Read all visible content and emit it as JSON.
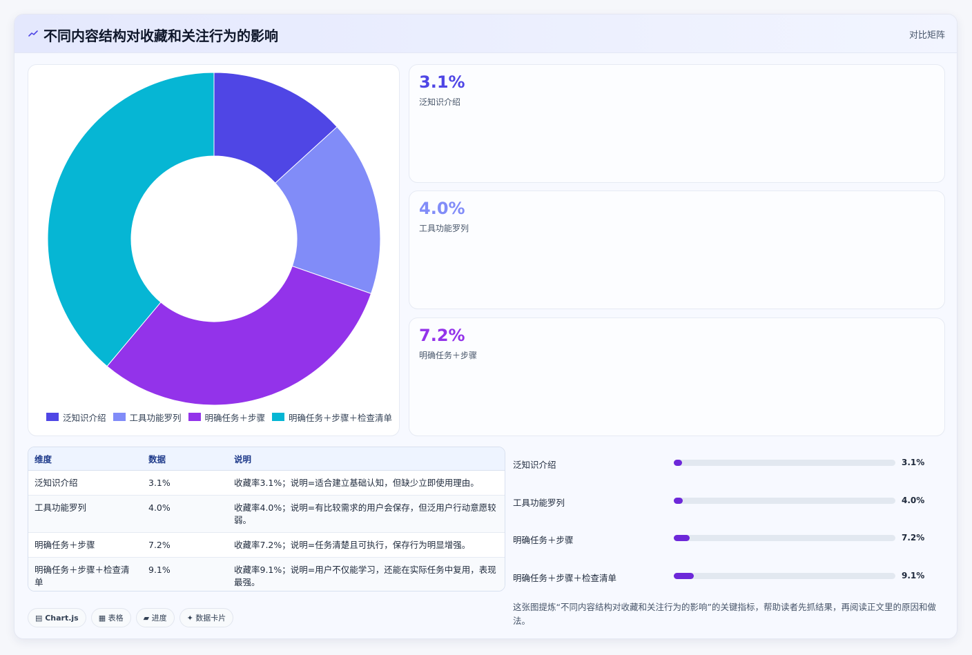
{
  "header": {
    "title": "不同内容结构对收藏和关注行为的影响",
    "tag": "对比矩阵"
  },
  "chart_data": {
    "type": "pie",
    "variant": "doughnut",
    "categories": [
      "泛知识介绍",
      "工具功能罗列",
      "明确任务＋步骤",
      "明确任务＋步骤＋检查清单"
    ],
    "values": [
      3.1,
      4.0,
      7.2,
      9.1
    ],
    "unit": "%",
    "colors": [
      "#4f46e5",
      "#818cf8",
      "#9333ea",
      "#06b6d4"
    ],
    "legend_position": "bottom"
  },
  "legend": [
    {
      "label": "泛知识介绍",
      "color": "#4f46e5"
    },
    {
      "label": "工具功能罗列",
      "color": "#818cf8"
    },
    {
      "label": "明确任务＋步骤",
      "color": "#9333ea"
    },
    {
      "label": "明确任务＋步骤＋检查清单",
      "color": "#06b6d4"
    }
  ],
  "stats": [
    {
      "value": "3.1%",
      "label": "泛知识介绍",
      "color": "#4f46e5"
    },
    {
      "value": "4.0%",
      "label": "工具功能罗列",
      "color": "#818cf8"
    },
    {
      "value": "7.2%",
      "label": "明确任务＋步骤",
      "color": "#9333ea"
    }
  ],
  "table": {
    "headers": [
      "维度",
      "数据",
      "说明"
    ],
    "rows": [
      [
        "泛知识介绍",
        "3.1%",
        "收藏率3.1%；说明=适合建立基础认知，但缺少立即使用理由。"
      ],
      [
        "工具功能罗列",
        "4.0%",
        "收藏率4.0%；说明=有比较需求的用户会保存，但泛用户行动意愿较弱。"
      ],
      [
        "明确任务＋步骤",
        "7.2%",
        "收藏率7.2%；说明=任务清楚且可执行，保存行为明显增强。"
      ],
      [
        "明确任务＋步骤＋检查清单",
        "9.1%",
        "收藏率9.1%；说明=用户不仅能学习，还能在实际任务中复用，表现最强。"
      ]
    ]
  },
  "bars": [
    {
      "label": "泛知识介绍",
      "value": "3.1%",
      "fraction": 0.031
    },
    {
      "label": "工具功能罗列",
      "value": "4.0%",
      "fraction": 0.04
    },
    {
      "label": "明确任务＋步骤",
      "value": "7.2%",
      "fraction": 0.072
    },
    {
      "label": "明确任务＋步骤＋检查清单",
      "value": "9.1%",
      "fraction": 0.091
    }
  ],
  "note": "这张图提炼“不同内容结构对收藏和关注行为的影响”的关键指标，帮助读者先抓结果，再阅读正文里的原因和做法。",
  "chips": {
    "chartjs": "▤ Chart.js",
    "table": "▦ 表格",
    "progress": "▰ 进度",
    "cards": "✦ 数据卡片"
  }
}
